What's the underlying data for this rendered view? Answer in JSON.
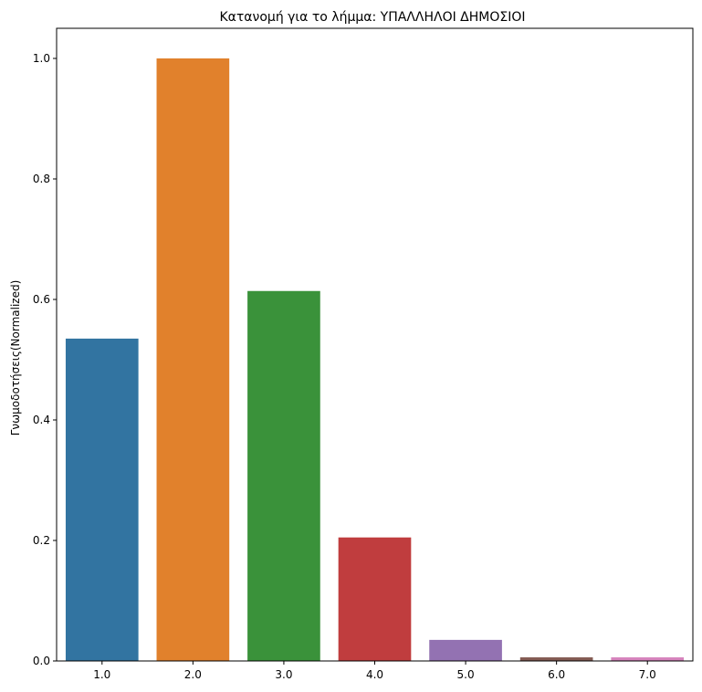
{
  "chart_data": {
    "type": "bar",
    "title": "Κατανομή για το λήμμα: ΥΠΑΛΛΗΛΟΙ ΔΗΜΟΣΙΟΙ",
    "xlabel": "",
    "ylabel": "Γνωμοδοτήσεις(Normalized)",
    "categories": [
      "1.0",
      "2.0",
      "3.0",
      "4.0",
      "5.0",
      "6.0",
      "7.0"
    ],
    "values": [
      0.535,
      1.0,
      0.614,
      0.205,
      0.035,
      0.006,
      0.006
    ],
    "colors": [
      "#3274a1",
      "#e1812c",
      "#3a923a",
      "#c03d3e",
      "#9372b2",
      "#845b53",
      "#d684bd"
    ],
    "ylim": [
      0,
      1.05
    ],
    "yticks": [
      {
        "value": 0.0,
        "label": "0.0"
      },
      {
        "value": 0.2,
        "label": "0.2"
      },
      {
        "value": 0.4,
        "label": "0.4"
      },
      {
        "value": 0.6,
        "label": "0.6"
      },
      {
        "value": 0.8,
        "label": "0.8"
      },
      {
        "value": 1.0,
        "label": "1.0"
      }
    ],
    "grid": false,
    "legend": "none"
  }
}
